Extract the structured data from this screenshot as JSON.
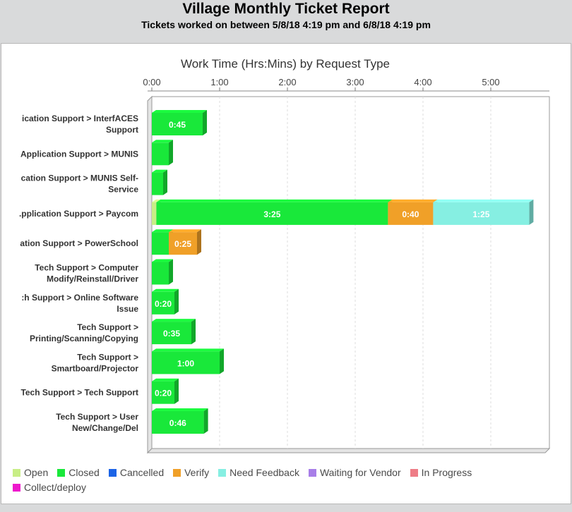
{
  "report": {
    "title": "Village Monthly Ticket Report",
    "subtitle": "Tickets worked on between 5/8/18 4:19 pm and 6/8/18 4:19 pm"
  },
  "chart_data": {
    "type": "bar",
    "orientation": "horizontal",
    "stacked": true,
    "title": "Work Time (Hrs:Mins) by Request Type",
    "x_unit": "minutes",
    "xlim": [
      0,
      345
    ],
    "x_ticks": [
      {
        "value": 0,
        "label": "0:00"
      },
      {
        "value": 60,
        "label": "1:00"
      },
      {
        "value": 120,
        "label": "2:00"
      },
      {
        "value": 180,
        "label": "3:00"
      },
      {
        "value": 240,
        "label": "4:00"
      },
      {
        "value": 300,
        "label": "5:00"
      }
    ],
    "grid": true,
    "legend_position": "bottom",
    "categories": [
      {
        "lines": [
          "ication Support > InterfACES",
          "Support"
        ]
      },
      {
        "lines": [
          "Application Support > MUNIS"
        ]
      },
      {
        "lines": [
          "cation Support > MUNIS Self-",
          "Service"
        ]
      },
      {
        "lines": [
          ".pplication Support > Paycom"
        ]
      },
      {
        "lines": [
          "ation Support > PowerSchool"
        ]
      },
      {
        "lines": [
          "Tech Support > Computer",
          "Modify/Reinstall/Driver"
        ]
      },
      {
        "lines": [
          ":h Support > Online Software",
          "Issue"
        ]
      },
      {
        "lines": [
          "Tech Support >",
          "Printing/Scanning/Copying"
        ]
      },
      {
        "lines": [
          "Tech Support >",
          "Smartboard/Projector"
        ]
      },
      {
        "lines": [
          "Tech Support > Tech Support"
        ]
      },
      {
        "lines": [
          "Tech Support > User",
          "New/Change/Del"
        ]
      }
    ],
    "series": [
      {
        "name": "Open",
        "color": "#c8ee86",
        "values": [
          0,
          0,
          0,
          4,
          0,
          0,
          0,
          0,
          0,
          0,
          0
        ],
        "labels": [
          "",
          "",
          "",
          "",
          "",
          "",
          "",
          "",
          "",
          "",
          ""
        ]
      },
      {
        "name": "Closed",
        "color": "#19e83a",
        "values": [
          45,
          15,
          10,
          205,
          15,
          15,
          20,
          35,
          60,
          20,
          46
        ],
        "labels": [
          "0:45",
          "",
          "",
          "3:25",
          "",
          "",
          "0:20",
          "0:35",
          "1:00",
          "0:20",
          "0:46"
        ]
      },
      {
        "name": "Cancelled",
        "color": "#1c64e6",
        "values": [
          0,
          0,
          0,
          0,
          0,
          0,
          0,
          0,
          0,
          0,
          0
        ],
        "labels": [
          "",
          "",
          "",
          "",
          "",
          "",
          "",
          "",
          "",
          "",
          ""
        ]
      },
      {
        "name": "Verify",
        "color": "#f0a028",
        "values": [
          0,
          0,
          0,
          40,
          25,
          0,
          0,
          0,
          0,
          0,
          0
        ],
        "labels": [
          "",
          "",
          "",
          "0:40",
          "0:25",
          "",
          "",
          "",
          "",
          "",
          ""
        ]
      },
      {
        "name": "Need Feedback",
        "color": "#86efe2",
        "values": [
          0,
          0,
          0,
          85,
          0,
          0,
          0,
          0,
          0,
          0,
          0
        ],
        "labels": [
          "",
          "",
          "",
          "1:25",
          "",
          "",
          "",
          "",
          "",
          "",
          ""
        ]
      },
      {
        "name": "Waiting for Vendor",
        "color": "#a87ee8",
        "values": [
          0,
          0,
          0,
          0,
          0,
          0,
          0,
          0,
          0,
          0,
          0
        ],
        "labels": [
          "",
          "",
          "",
          "",
          "",
          "",
          "",
          "",
          "",
          "",
          ""
        ]
      },
      {
        "name": "In Progress",
        "color": "#ee7c86",
        "values": [
          0,
          0,
          0,
          0,
          0,
          0,
          0,
          0,
          0,
          0,
          0
        ],
        "labels": [
          "",
          "",
          "",
          "",
          "",
          "",
          "",
          "",
          "",
          "",
          ""
        ]
      },
      {
        "name": "Collect/deploy",
        "color": "#ee18cc",
        "values": [
          0,
          0,
          0,
          0,
          0,
          0,
          0,
          0,
          0,
          0,
          0
        ],
        "labels": [
          "",
          "",
          "",
          "",
          "",
          "",
          "",
          "",
          "",
          "",
          ""
        ]
      }
    ]
  }
}
